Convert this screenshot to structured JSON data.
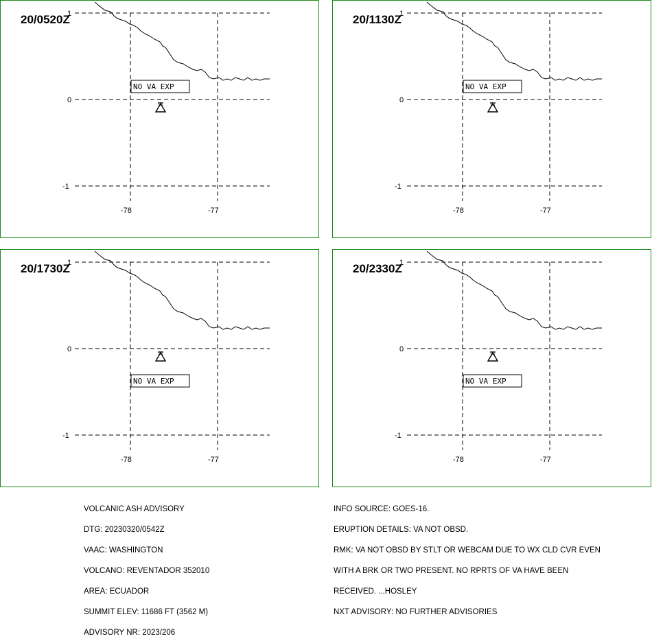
{
  "panels": [
    {
      "time": "20/0520Z",
      "label": "NO VA EXP",
      "label_pos": "above"
    },
    {
      "time": "20/1130Z",
      "label": "NO VA EXP",
      "label_pos": "above"
    },
    {
      "time": "20/1730Z",
      "label": "NO VA EXP",
      "label_pos": "below"
    },
    {
      "time": "20/2330Z",
      "label": "NO VA EXP",
      "label_pos": "below"
    }
  ],
  "axis": {
    "lat_labels": [
      "1",
      "0",
      "-1"
    ],
    "lon_labels": [
      "-78",
      "-77"
    ]
  },
  "colors": {
    "panel_border": "#1a8a1a",
    "lines": "#000000"
  },
  "volcano_icon": "volcano-icon",
  "advisory_left": [
    "VOLCANIC ASH ADVISORY",
    "DTG: 20230320/0542Z",
    "VAAC: WASHINGTON",
    "VOLCANO: REVENTADOR 352010",
    "AREA: ECUADOR",
    "SUMMIT ELEV: 11686 FT (3562 M)",
    "ADVISORY NR: 2023/206"
  ],
  "advisory_right": [
    "INFO SOURCE: GOES-16.",
    "ERUPTION DETAILS: VA NOT OBSD.",
    "RMK: VA NOT OBSD BY STLT OR WEBCAM DUE TO WX CLD CVR EVEN",
    "WITH A BRK OR TWO PRESENT. NO RPRTS OF VA HAVE BEEN",
    "RECEIVED. ...HOSLEY",
    "NXT ADVISORY: NO FURTHER ADVISORIES"
  ]
}
